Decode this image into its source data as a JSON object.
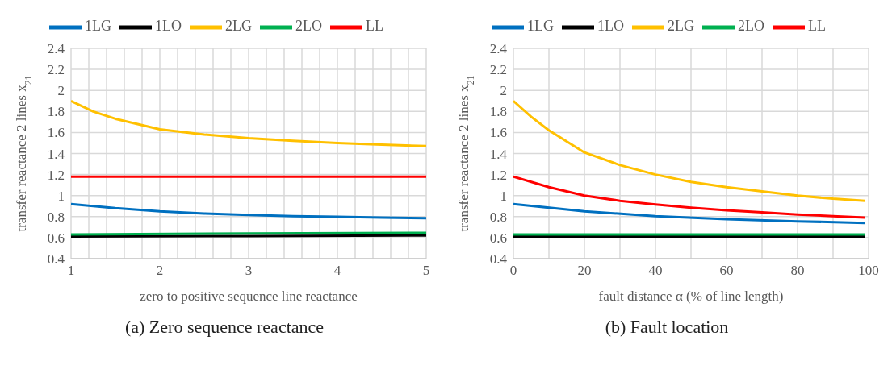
{
  "chart_data": [
    {
      "type": "line",
      "title": "(a) Zero sequence reactance",
      "xlabel": "zero to positive sequence line reactance",
      "ylabel": "transfer reactance 2 lines x$_{21}$",
      "xlim": [
        1,
        5
      ],
      "xticks": [
        1,
        {
          "value": 1.2,
          "label": null
        },
        {
          "value": 1.4,
          "label": null
        },
        {
          "value": 1.6,
          "label": null
        },
        {
          "value": 1.8,
          "label": null
        },
        2,
        {
          "value": 2.2,
          "label": null
        },
        {
          "value": 2.4,
          "label": null
        },
        {
          "value": 2.6,
          "label": null
        },
        {
          "value": 2.8,
          "label": null
        },
        3,
        {
          "value": 3.2,
          "label": null
        },
        {
          "value": 3.4,
          "label": null
        },
        {
          "value": 3.6,
          "label": null
        },
        {
          "value": 3.8,
          "label": null
        },
        4,
        {
          "value": 4.2,
          "label": null
        },
        {
          "value": 4.4,
          "label": null
        },
        {
          "value": 4.6,
          "label": null
        },
        {
          "value": 4.8,
          "label": null
        },
        5
      ],
      "ylim": [
        0.4,
        2.4
      ],
      "yticks": [
        0.4,
        0.6,
        0.8,
        1,
        1.2,
        1.4,
        1.6,
        1.8,
        2,
        2.2,
        2.4
      ],
      "grid": true,
      "legend": "top",
      "marker": "none",
      "line_style": "solid",
      "series": [
        {
          "name": "LL",
          "color": "#ff0000",
          "x": [
            1,
            2,
            3,
            4,
            5
          ],
          "values": [
            1.18,
            1.18,
            1.18,
            1.18,
            1.18
          ]
        },
        {
          "name": "1LG",
          "color": "#0070c0",
          "x": [
            1,
            1.5,
            2,
            2.5,
            3,
            3.5,
            4,
            4.5,
            5
          ],
          "values": [
            0.92,
            0.88,
            0.85,
            0.83,
            0.815,
            0.805,
            0.798,
            0.79,
            0.785
          ]
        },
        {
          "name": "2LG",
          "color": "#ffc000",
          "x": [
            1,
            1.25,
            1.5,
            1.75,
            2,
            2.5,
            3,
            3.5,
            4,
            4.5,
            5
          ],
          "values": [
            1.9,
            1.8,
            1.73,
            1.68,
            1.63,
            1.58,
            1.545,
            1.52,
            1.5,
            1.485,
            1.47
          ]
        },
        {
          "name": "1LO",
          "color": "#000000",
          "x": [
            1,
            3,
            5
          ],
          "values": [
            0.61,
            0.615,
            0.62
          ]
        },
        {
          "name": "2LO",
          "color": "#00b050",
          "x": [
            1,
            3,
            5
          ],
          "values": [
            0.63,
            0.64,
            0.645
          ]
        }
      ]
    },
    {
      "type": "line",
      "title": "(b) Fault location",
      "xlabel": "fault distance α (% of line length)",
      "ylabel": "transfer reactance 2 lines x$_{21}$",
      "xlim": [
        0,
        100
      ],
      "xticks": [
        0,
        {
          "value": 10,
          "label": null
        },
        20,
        {
          "value": 30,
          "label": null
        },
        40,
        {
          "value": 50,
          "label": null
        },
        60,
        {
          "value": 70,
          "label": null
        },
        80,
        {
          "value": 90,
          "label": null
        },
        100
      ],
      "ylim": [
        0.4,
        2.4
      ],
      "yticks": [
        0.4,
        0.6,
        0.8,
        1,
        1.2,
        1.4,
        1.6,
        1.8,
        2,
        2.2,
        2.4
      ],
      "grid": true,
      "legend": "top",
      "marker": "none",
      "line_style": "solid",
      "series": [
        {
          "name": "LL",
          "color": "#ff0000",
          "x": [
            0,
            10,
            20,
            30,
            40,
            50,
            60,
            70,
            80,
            90,
            99
          ],
          "values": [
            1.18,
            1.08,
            1.0,
            0.95,
            0.915,
            0.885,
            0.86,
            0.84,
            0.82,
            0.805,
            0.79
          ]
        },
        {
          "name": "1LG",
          "color": "#0070c0",
          "x": [
            0,
            20,
            40,
            60,
            80,
            99
          ],
          "values": [
            0.92,
            0.85,
            0.805,
            0.775,
            0.755,
            0.74
          ]
        },
        {
          "name": "2LG",
          "color": "#ffc000",
          "x": [
            0,
            5,
            10,
            20,
            30,
            40,
            50,
            60,
            70,
            80,
            90,
            99
          ],
          "values": [
            1.9,
            1.75,
            1.62,
            1.41,
            1.29,
            1.2,
            1.13,
            1.08,
            1.04,
            1.0,
            0.97,
            0.95
          ]
        },
        {
          "name": "1LO",
          "color": "#000000",
          "x": [
            0,
            50,
            99
          ],
          "values": [
            0.61,
            0.61,
            0.61
          ]
        },
        {
          "name": "2LO",
          "color": "#00b050",
          "x": [
            0,
            50,
            99
          ],
          "values": [
            0.63,
            0.63,
            0.63
          ]
        }
      ]
    }
  ]
}
